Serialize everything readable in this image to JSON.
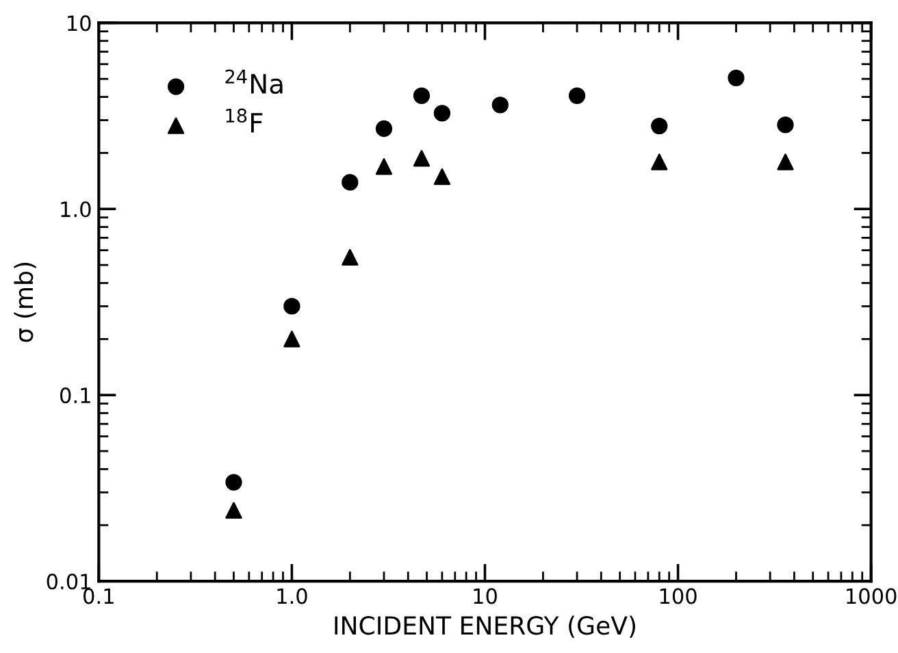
{
  "chart_data": {
    "type": "scatter",
    "xlabel": "INCIDENT ENERGY (GeV)",
    "ylabel": "σ (mb)",
    "log": "xy",
    "grid": false,
    "legend": "top left",
    "xlim": [
      0.1,
      1000
    ],
    "xticks": [
      {
        "value": 0.1,
        "label": "0.1"
      },
      {
        "value": 1,
        "label": "1.0"
      },
      {
        "value": 10,
        "label": "10"
      },
      {
        "value": 100,
        "label": "100"
      },
      {
        "value": 1000,
        "label": "1000"
      }
    ],
    "ylim": [
      0.01,
      10
    ],
    "yticks": [
      {
        "value": 0.01,
        "label": "0.01"
      },
      {
        "value": 0.1,
        "label": "0.1"
      },
      {
        "value": 1,
        "label": "1.0"
      },
      {
        "value": 10,
        "label": "10"
      }
    ],
    "series": [
      {
        "name": "$^{24}$Na",
        "color": "#000000",
        "marker": "circle",
        "x": [
          0.5,
          1.0,
          2,
          3,
          4.7,
          6,
          12,
          30,
          80,
          200,
          360
        ],
        "values": [
          0.034,
          0.3,
          1.39,
          2.7,
          4.06,
          3.27,
          3.62,
          4.06,
          2.79,
          5.06,
          2.83
        ]
      },
      {
        "name": "$^{18}$F",
        "color": "#000000",
        "marker": "triangle",
        "x": [
          0.5,
          1.0,
          2,
          3,
          4.7,
          6,
          80,
          360
        ],
        "values": [
          0.024,
          0.2,
          0.55,
          1.69,
          1.87,
          1.49,
          1.79,
          1.79
        ]
      }
    ]
  }
}
